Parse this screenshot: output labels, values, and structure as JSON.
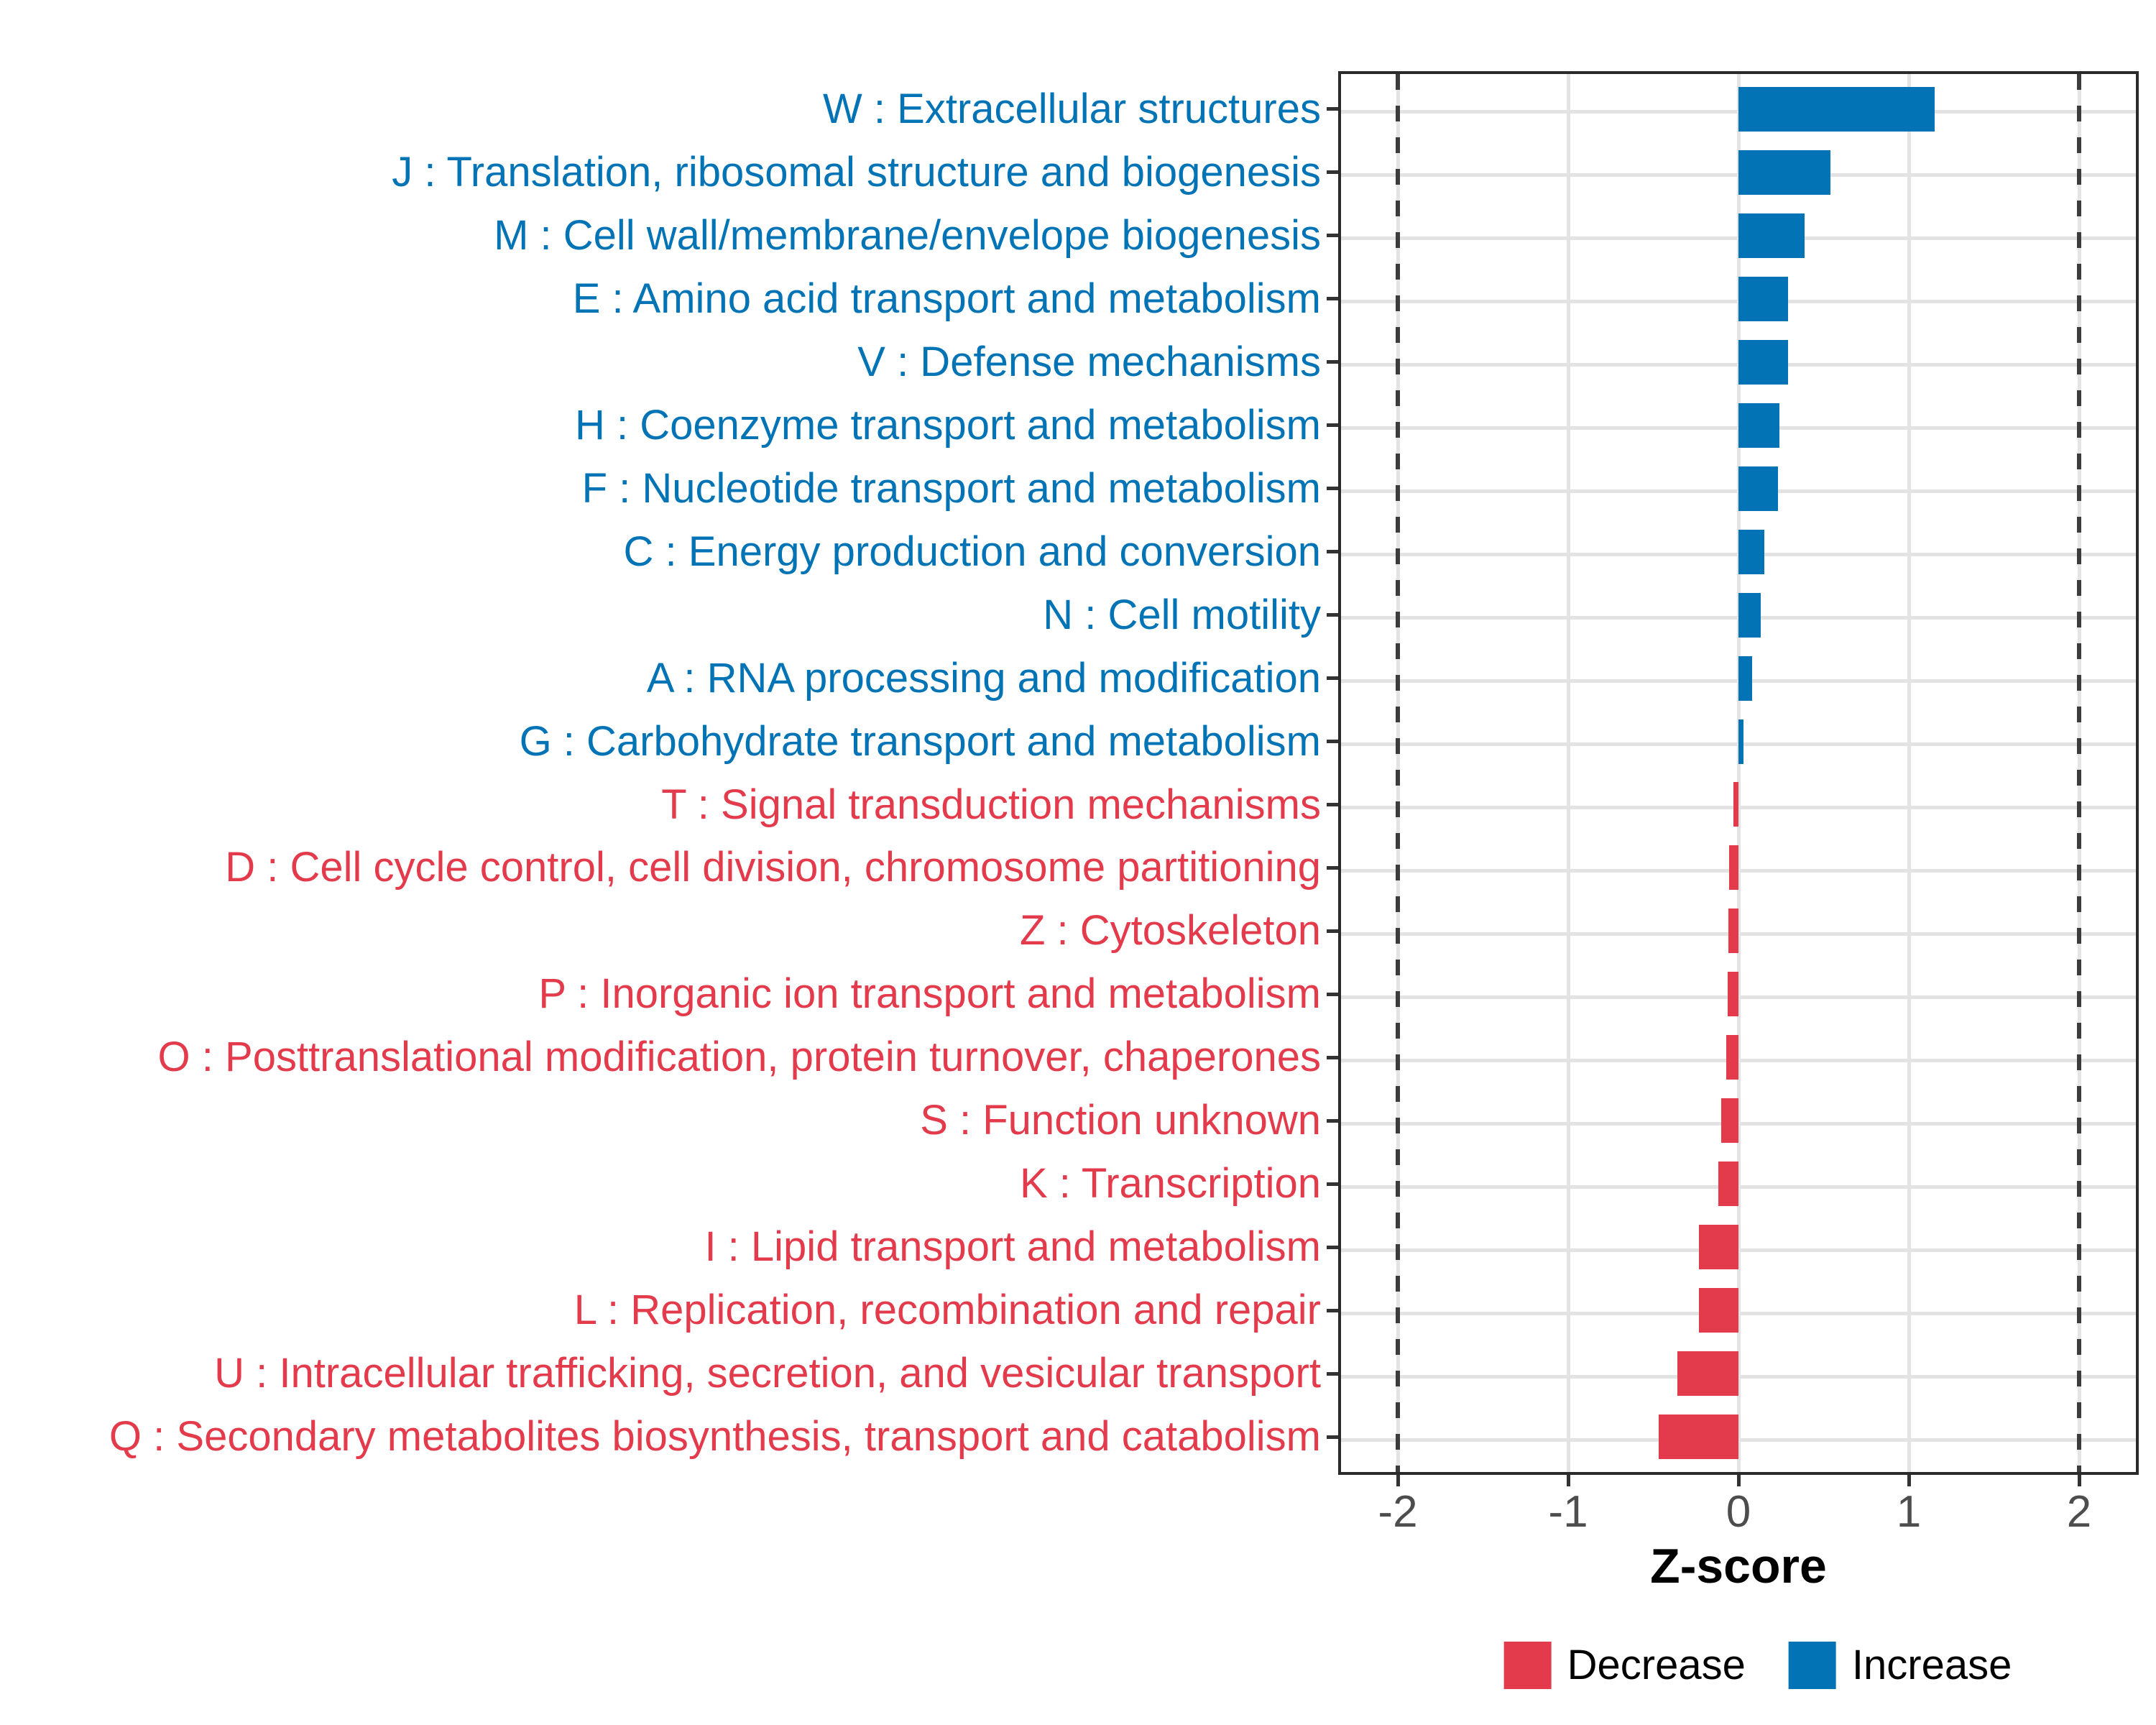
{
  "colors": {
    "increase": "#0274B5",
    "decrease": "#E33B4C",
    "grid": "#E3E3E3",
    "panel_border": "#2B2B2B",
    "dashed_line": "#3C3C3C",
    "axis_tick_text": "#4D4D4D",
    "background": "#FFFFFF"
  },
  "legend": {
    "decrease_label": "Decrease",
    "increase_label": "Increase"
  },
  "chart_data": {
    "type": "bar",
    "orientation": "horizontal",
    "title": "",
    "xlabel": "Z-score",
    "ylabel": "",
    "grid": true,
    "legend_position": "bottom-center",
    "x_ticks": [
      -2,
      -1,
      0,
      1,
      2
    ],
    "xlim": [
      -2.35,
      2.35
    ],
    "reference_lines_dashed": [
      -2,
      2
    ],
    "items": [
      {
        "label": "W : Extracellular structures",
        "value": 1.15,
        "change": "increase"
      },
      {
        "label": "J : Translation, ribosomal structure and biogenesis",
        "value": 0.54,
        "change": "increase"
      },
      {
        "label": "M : Cell wall/membrane/envelope biogenesis",
        "value": 0.39,
        "change": "increase"
      },
      {
        "label": "E : Amino acid transport and metabolism",
        "value": 0.29,
        "change": "increase"
      },
      {
        "label": "V : Defense mechanisms",
        "value": 0.29,
        "change": "increase"
      },
      {
        "label": "H : Coenzyme transport and metabolism",
        "value": 0.24,
        "change": "increase"
      },
      {
        "label": "F : Nucleotide transport and metabolism",
        "value": 0.23,
        "change": "increase"
      },
      {
        "label": "C : Energy production and conversion",
        "value": 0.15,
        "change": "increase"
      },
      {
        "label": "N : Cell motility",
        "value": 0.13,
        "change": "increase"
      },
      {
        "label": "A : RNA processing and modification",
        "value": 0.08,
        "change": "increase"
      },
      {
        "label": "G : Carbohydrate transport and metabolism",
        "value": 0.03,
        "change": "increase"
      },
      {
        "label": "T : Signal transduction mechanisms",
        "value": -0.03,
        "change": "decrease"
      },
      {
        "label": "D : Cell cycle control, cell division, chromosome partitioning",
        "value": -0.055,
        "change": "decrease"
      },
      {
        "label": "Z : Cytoskeleton",
        "value": -0.06,
        "change": "decrease"
      },
      {
        "label": "P : Inorganic ion transport and metabolism",
        "value": -0.065,
        "change": "decrease"
      },
      {
        "label": "O : Posttranslational modification, protein turnover, chaperones",
        "value": -0.07,
        "change": "decrease"
      },
      {
        "label": "S : Function unknown",
        "value": -0.1,
        "change": "decrease"
      },
      {
        "label": "K : Transcription",
        "value": -0.12,
        "change": "decrease"
      },
      {
        "label": "I : Lipid transport and metabolism",
        "value": -0.23,
        "change": "decrease"
      },
      {
        "label": "L : Replication, recombination and repair",
        "value": -0.23,
        "change": "decrease"
      },
      {
        "label": "U : Intracellular trafficking, secretion, and vesicular transport",
        "value": -0.36,
        "change": "decrease"
      },
      {
        "label": "Q : Secondary metabolites biosynthesis, transport and catabolism",
        "value": -0.47,
        "change": "decrease"
      }
    ]
  }
}
